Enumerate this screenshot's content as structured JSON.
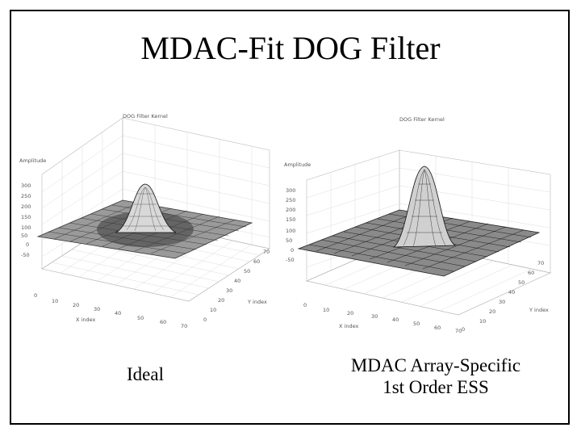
{
  "slide": {
    "title": "MDAC-Fit DOG Filter"
  },
  "left_plot": {
    "title": "DOG Filter Kernel",
    "z_label": "Amplitude",
    "z_ticks": [
      "300",
      "250",
      "200",
      "150",
      "100",
      "50",
      "0",
      "-50"
    ],
    "x_label": "X index",
    "x_ticks": [
      "0",
      "10",
      "20",
      "30",
      "40",
      "50",
      "60",
      "70"
    ],
    "y_label": "Y index",
    "y_ticks": [
      "0",
      "10",
      "20",
      "30",
      "40",
      "50",
      "60",
      "70"
    ],
    "caption": "Ideal"
  },
  "right_plot": {
    "title": "DOG Filter Kernel",
    "z_label": "Amplitude",
    "z_ticks": [
      "300",
      "250",
      "200",
      "150",
      "100",
      "50",
      "0",
      "-50"
    ],
    "x_label": "X index",
    "x_ticks": [
      "0",
      "10",
      "20",
      "30",
      "40",
      "50",
      "60",
      "70"
    ],
    "y_label": "Y index",
    "y_ticks": [
      "0",
      "10",
      "20",
      "30",
      "40",
      "50",
      "60",
      "70"
    ],
    "caption_line1": "MDAC Array-Specific",
    "caption_line2": "1st Order ESS"
  }
}
